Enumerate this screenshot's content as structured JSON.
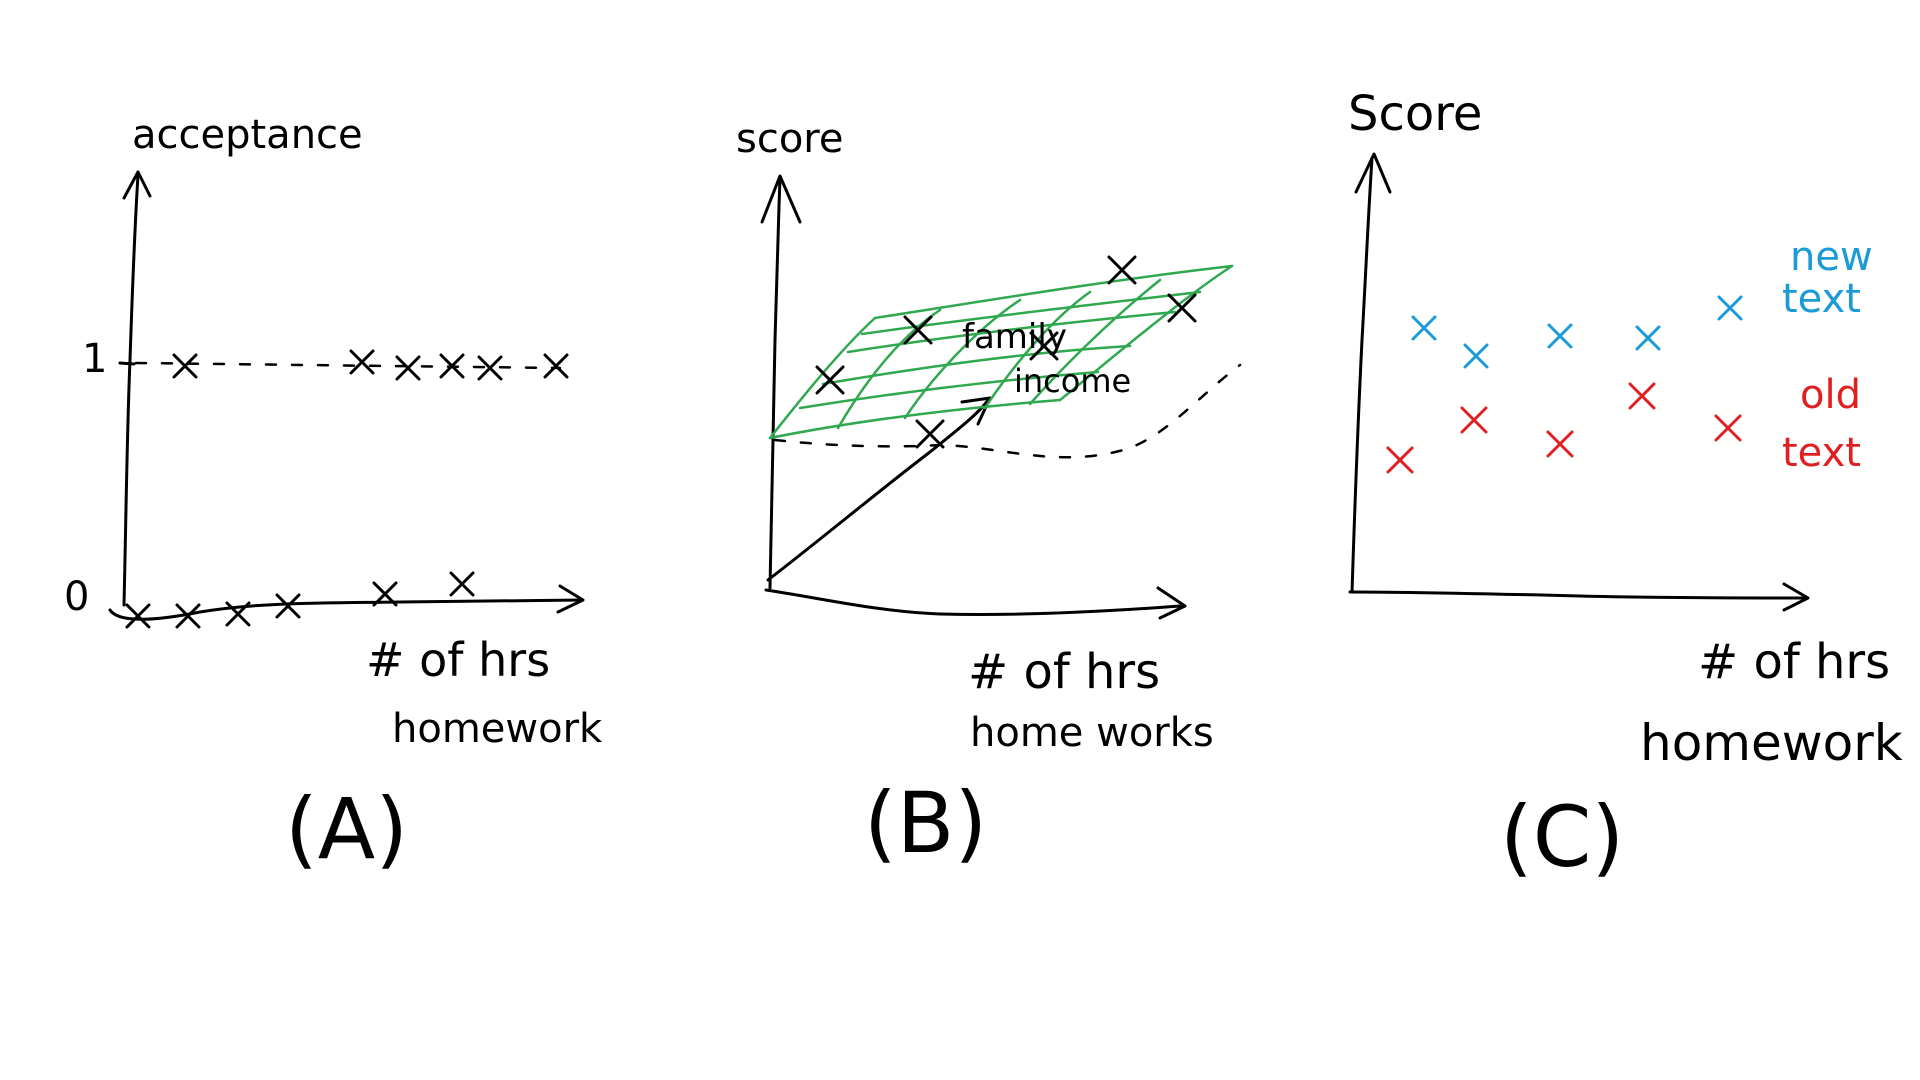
{
  "panels": {
    "a": {
      "y_axis_label": "acceptance",
      "x_axis_label_line1": "# of hrs",
      "x_axis_label_line2": "homework",
      "tick_one": "1",
      "tick_zero": "0",
      "caption": "(A)"
    },
    "b": {
      "y_axis_label": "score",
      "x_axis_label_line1": "# of hrs",
      "x_axis_label_line2": "home works",
      "z_axis_label_line1": "family",
      "z_axis_label_line2": "income",
      "caption": "(B)"
    },
    "c": {
      "y_axis_label": "Score",
      "x_axis_label_line1": "# of hrs",
      "x_axis_label_line2": "homework",
      "legend_new_line1": "new",
      "legend_new_line2": "text",
      "legend_old_line1": "old",
      "legend_old_line2": "text",
      "caption": "(C)"
    }
  },
  "colors": {
    "ink": "#000000",
    "plane": "#2fa84f",
    "new_text": "#1a9ad6",
    "old_text": "#e02020"
  }
}
